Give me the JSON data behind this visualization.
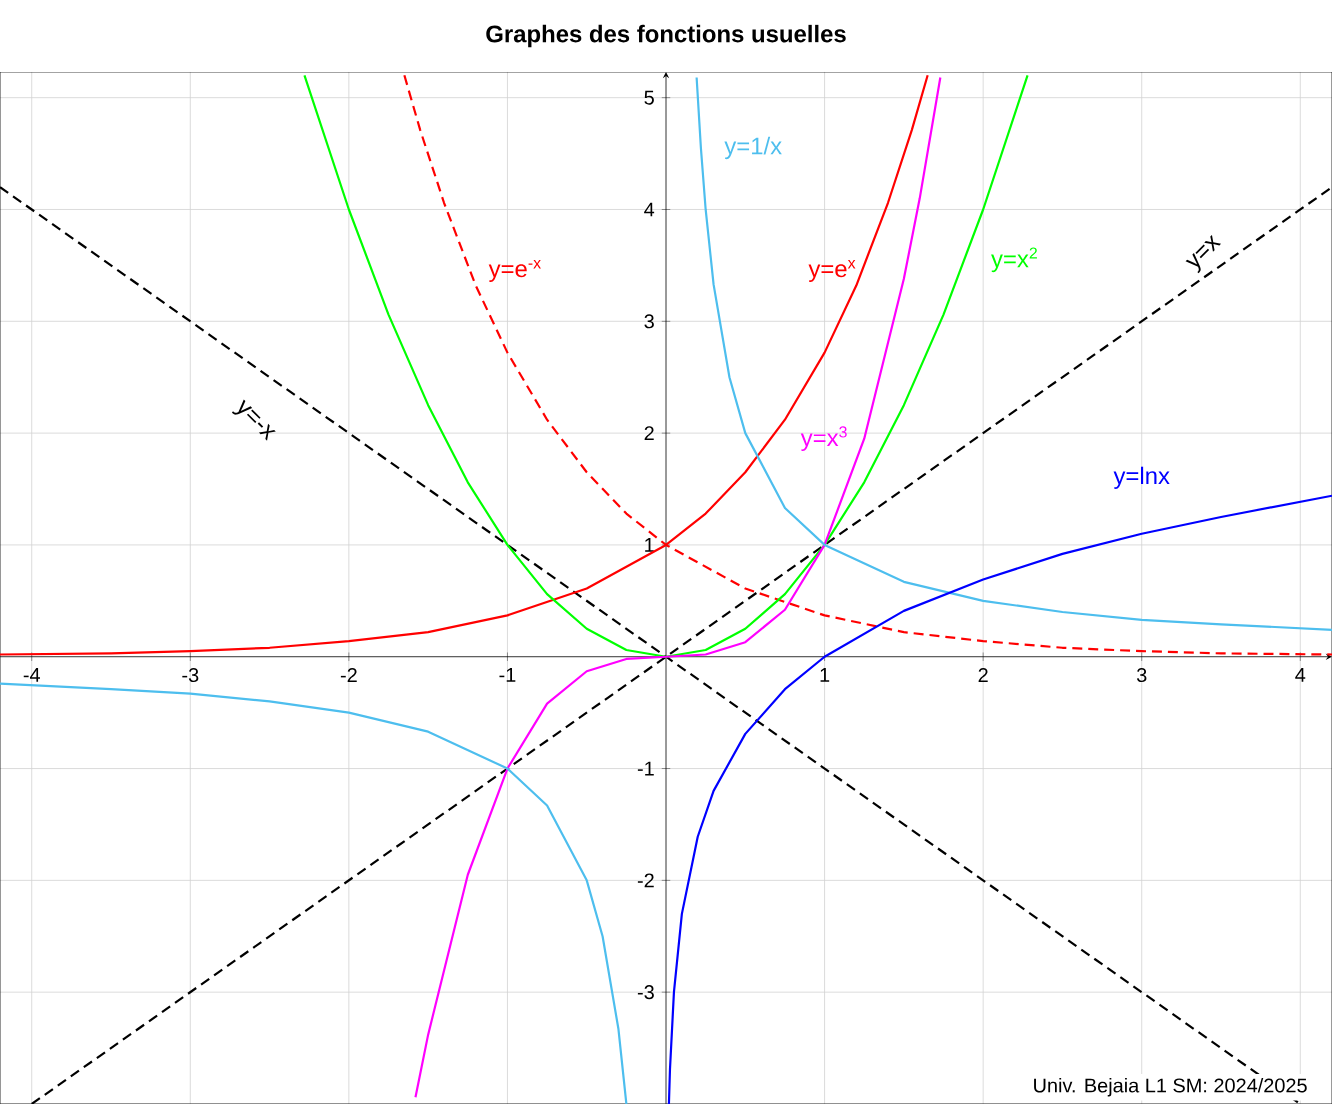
{
  "chart_data": {
    "type": "line",
    "title": "Graphes des fonctions usuelles",
    "annotations": [
      "Univ. Bejaia    L1 SM: 2024/2025"
    ],
    "xlim": [
      -4.2,
      4.2
    ],
    "ylim": [
      -4,
      5.23
    ],
    "xticks": [
      -4,
      -3,
      -2,
      -1,
      1,
      2,
      3,
      4
    ],
    "yticks": [
      -3,
      -2,
      -1,
      1,
      2,
      3,
      4,
      5
    ],
    "grid": true,
    "legend": false,
    "series": [
      {
        "name": "y=x",
        "color": "#000000",
        "line_style": "dashed",
        "x": [
          -4,
          0,
          4.2
        ],
        "values": [
          -4,
          0,
          4.2
        ]
      },
      {
        "name": "y=-x",
        "color": "#000000",
        "line_style": "dashed",
        "x": [
          -4.2,
          0,
          4
        ],
        "values": [
          4.2,
          0,
          -4
        ]
      },
      {
        "name": "y=e$^{x}$",
        "color": "#ff0000",
        "line_style": "solid",
        "x": [
          -4.2,
          -3.5,
          -3,
          -2.5,
          -2,
          -1.5,
          -1,
          -0.5,
          0,
          0.25,
          0.5,
          0.75,
          1,
          1.2,
          1.4,
          1.55,
          1.65
        ],
        "values": [
          0.02,
          0.03,
          0.05,
          0.08,
          0.14,
          0.22,
          0.37,
          0.61,
          1,
          1.28,
          1.65,
          2.12,
          2.72,
          3.32,
          4.06,
          4.71,
          5.2
        ]
      },
      {
        "name": "y=e$^{-x}$",
        "color": "#ff0000",
        "line_style": "dashed",
        "x": [
          -1.65,
          -1.55,
          -1.4,
          -1.2,
          -1,
          -0.75,
          -0.5,
          -0.25,
          0,
          0.5,
          1,
          1.5,
          2,
          2.5,
          3,
          3.5,
          4.2
        ],
        "values": [
          5.2,
          4.71,
          4.06,
          3.32,
          2.72,
          2.12,
          1.65,
          1.28,
          1,
          0.61,
          0.37,
          0.22,
          0.14,
          0.08,
          0.05,
          0.03,
          0.02
        ]
      },
      {
        "name": "y=x$^{2}$",
        "color": "#00ff00",
        "line_style": "solid",
        "x": [
          -2.28,
          -2,
          -1.75,
          -1.5,
          -1.25,
          -1,
          -0.75,
          -0.5,
          -0.25,
          0,
          0.25,
          0.5,
          0.75,
          1,
          1.25,
          1.5,
          1.75,
          2,
          2.28
        ],
        "values": [
          5.2,
          4,
          3.06,
          2.25,
          1.56,
          1,
          0.56,
          0.25,
          0.06,
          0,
          0.06,
          0.25,
          0.56,
          1,
          1.56,
          2.25,
          3.06,
          4,
          5.2
        ]
      },
      {
        "name": "y=x$^{3}$",
        "color": "#ff00ff",
        "line_style": "solid",
        "x": [
          -1.58,
          -1.5,
          -1.25,
          -1,
          -0.75,
          -0.5,
          -0.25,
          0,
          0.25,
          0.5,
          0.75,
          1,
          1.25,
          1.5,
          1.6,
          1.73
        ],
        "values": [
          -3.94,
          -3.38,
          -1.95,
          -1,
          -0.42,
          -0.13,
          -0.02,
          0,
          0.02,
          0.13,
          0.42,
          1,
          1.95,
          3.38,
          4.1,
          5.18
        ]
      },
      {
        "name": "y=1/x",
        "color": "#4dbeee",
        "line_style": "solid",
        "x": [
          -4.2,
          -3.5,
          -3,
          -2.5,
          -2,
          -1.5,
          -1,
          -0.75,
          -0.5,
          -0.4,
          -0.3,
          -0.25,
          0,
          0.193,
          0.22,
          0.25,
          0.3,
          0.4,
          0.5,
          0.75,
          1,
          1.5,
          2,
          2.5,
          3,
          3.5,
          4.2
        ],
        "values": [
          -0.24,
          -0.29,
          -0.33,
          -0.4,
          -0.5,
          -0.67,
          -1,
          -1.33,
          -2,
          -2.5,
          -3.33,
          -4,
          null,
          5.18,
          4.55,
          4,
          3.33,
          2.5,
          2,
          1.33,
          1,
          0.67,
          0.5,
          0.4,
          0.33,
          0.29,
          0.24
        ]
      },
      {
        "name": "y=lnx",
        "color": "#0000ff",
        "line_style": "solid",
        "x": [
          0.0183,
          0.025,
          0.05,
          0.1,
          0.2,
          0.3,
          0.5,
          0.75,
          1,
          1.5,
          2,
          2.5,
          3,
          3.5,
          4.2
        ],
        "values": [
          -4,
          -3.69,
          -3,
          -2.3,
          -1.61,
          -1.2,
          -0.69,
          -0.29,
          0,
          0.41,
          0.69,
          0.92,
          1.1,
          1.25,
          1.44
        ]
      }
    ]
  }
}
